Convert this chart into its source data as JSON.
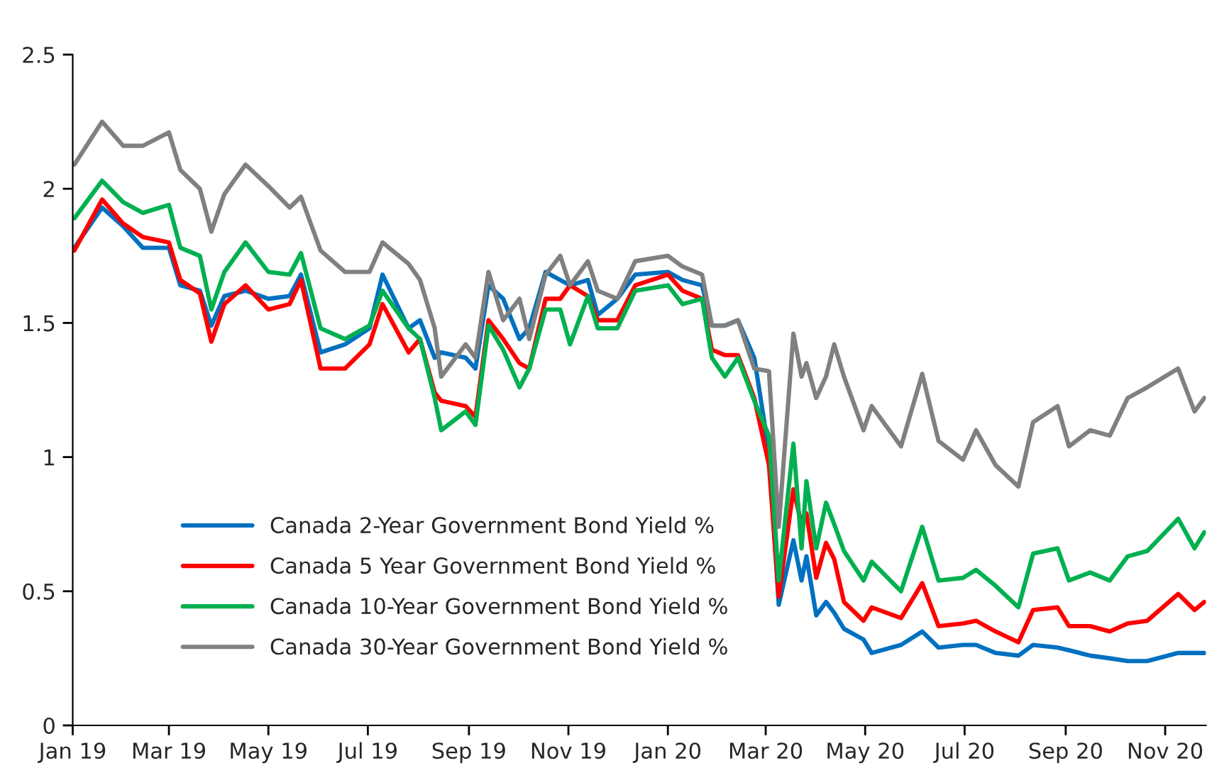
{
  "chart_data": {
    "type": "line",
    "x": [
      "2019-01-02",
      "2019-01-19",
      "2019-02-01",
      "2019-02-13",
      "2019-03-01",
      "2019-03-08",
      "2019-03-20",
      "2019-03-27",
      "2019-04-04",
      "2019-04-17",
      "2019-05-01",
      "2019-05-14",
      "2019-05-21",
      "2019-06-02",
      "2019-06-17",
      "2019-07-02",
      "2019-07-10",
      "2019-07-26",
      "2019-08-02",
      "2019-08-11",
      "2019-08-15",
      "2019-08-30",
      "2019-09-05",
      "2019-09-13",
      "2019-09-22",
      "2019-10-02",
      "2019-10-08",
      "2019-10-18",
      "2019-10-27",
      "2019-11-02",
      "2019-11-13",
      "2019-11-19",
      "2019-12-01",
      "2019-12-12",
      "2020-01-01",
      "2020-01-10",
      "2020-01-22",
      "2020-01-28",
      "2020-02-05",
      "2020-02-13",
      "2020-02-23",
      "2020-03-03",
      "2020-03-09",
      "2020-03-18",
      "2020-03-23",
      "2020-03-26",
      "2020-04-01",
      "2020-04-07",
      "2020-04-12",
      "2020-04-18",
      "2020-04-30",
      "2020-05-05",
      "2020-05-23",
      "2020-06-05",
      "2020-06-15",
      "2020-06-30",
      "2020-07-08",
      "2020-07-20",
      "2020-08-03",
      "2020-08-12",
      "2020-08-27",
      "2020-09-03",
      "2020-09-16",
      "2020-09-28",
      "2020-10-09",
      "2020-10-21",
      "2020-11-09",
      "2020-11-19",
      "2020-11-25"
    ],
    "series": [
      {
        "name": "Canada 2-Year Government Bond Yield %",
        "color": "#0070c0",
        "values": [
          1.78,
          1.93,
          1.86,
          1.78,
          1.78,
          1.64,
          1.62,
          1.49,
          1.6,
          1.62,
          1.59,
          1.6,
          1.68,
          1.39,
          1.42,
          1.48,
          1.68,
          1.48,
          1.51,
          1.37,
          1.39,
          1.37,
          1.33,
          1.64,
          1.59,
          1.44,
          1.48,
          1.69,
          1.66,
          1.64,
          1.66,
          1.53,
          1.59,
          1.68,
          1.69,
          1.66,
          1.64,
          1.49,
          1.49,
          1.51,
          1.37,
          1.02,
          0.45,
          0.69,
          0.54,
          0.63,
          0.41,
          0.46,
          0.42,
          0.36,
          0.32,
          0.27,
          0.3,
          0.35,
          0.29,
          0.3,
          0.3,
          0.27,
          0.26,
          0.3,
          0.29,
          0.28,
          0.26,
          0.25,
          0.24,
          0.24,
          0.27,
          0.27,
          0.27
        ]
      },
      {
        "name": "Canada 5 Year Government Bond Yield %",
        "color": "#ff0000",
        "values": [
          1.77,
          1.96,
          1.87,
          1.82,
          1.8,
          1.66,
          1.61,
          1.43,
          1.57,
          1.64,
          1.55,
          1.57,
          1.66,
          1.33,
          1.33,
          1.42,
          1.57,
          1.39,
          1.44,
          1.24,
          1.21,
          1.19,
          1.15,
          1.51,
          1.44,
          1.35,
          1.33,
          1.59,
          1.59,
          1.64,
          1.6,
          1.51,
          1.51,
          1.64,
          1.68,
          1.62,
          1.59,
          1.4,
          1.38,
          1.38,
          1.22,
          0.97,
          0.48,
          0.88,
          0.75,
          0.79,
          0.55,
          0.68,
          0.62,
          0.46,
          0.39,
          0.44,
          0.4,
          0.53,
          0.37,
          0.38,
          0.39,
          0.35,
          0.31,
          0.43,
          0.44,
          0.37,
          0.37,
          0.35,
          0.38,
          0.39,
          0.49,
          0.43,
          0.46
        ]
      },
      {
        "name": "Canada 10-Year Government Bond Yield %",
        "color": "#00b050",
        "values": [
          1.89,
          2.03,
          1.95,
          1.91,
          1.94,
          1.78,
          1.75,
          1.55,
          1.69,
          1.8,
          1.69,
          1.68,
          1.76,
          1.48,
          1.44,
          1.49,
          1.62,
          1.48,
          1.44,
          1.22,
          1.1,
          1.17,
          1.12,
          1.49,
          1.4,
          1.26,
          1.33,
          1.55,
          1.55,
          1.42,
          1.6,
          1.48,
          1.48,
          1.62,
          1.64,
          1.57,
          1.59,
          1.37,
          1.3,
          1.37,
          1.21,
          1.08,
          0.54,
          1.05,
          0.66,
          0.91,
          0.66,
          0.83,
          0.75,
          0.65,
          0.54,
          0.61,
          0.5,
          0.74,
          0.54,
          0.55,
          0.58,
          0.52,
          0.44,
          0.64,
          0.66,
          0.54,
          0.57,
          0.54,
          0.63,
          0.65,
          0.77,
          0.66,
          0.72
        ]
      },
      {
        "name": "Canada 30-Year Government Bond Yield %",
        "color": "#808080",
        "values": [
          2.09,
          2.25,
          2.16,
          2.16,
          2.21,
          2.07,
          2.0,
          1.84,
          1.98,
          2.09,
          2.01,
          1.93,
          1.97,
          1.77,
          1.69,
          1.69,
          1.8,
          1.72,
          1.66,
          1.48,
          1.3,
          1.42,
          1.37,
          1.69,
          1.51,
          1.59,
          1.44,
          1.68,
          1.75,
          1.64,
          1.73,
          1.62,
          1.59,
          1.73,
          1.75,
          1.71,
          1.68,
          1.49,
          1.49,
          1.51,
          1.33,
          1.32,
          0.74,
          1.46,
          1.3,
          1.35,
          1.22,
          1.3,
          1.42,
          1.3,
          1.1,
          1.19,
          1.04,
          1.31,
          1.06,
          0.99,
          1.1,
          0.97,
          0.89,
          1.13,
          1.19,
          1.04,
          1.1,
          1.08,
          1.22,
          1.26,
          1.33,
          1.17,
          1.22
        ]
      }
    ],
    "xlim": [
      "2019-01-01",
      "2020-11-26"
    ],
    "xticks": [
      {
        "value": "2019-01-01",
        "label": "Jan 19"
      },
      {
        "value": "2019-03-01",
        "label": "Mar 19"
      },
      {
        "value": "2019-05-01",
        "label": "May 19"
      },
      {
        "value": "2019-07-01",
        "label": "Jul 19"
      },
      {
        "value": "2019-09-01",
        "label": "Sep 19"
      },
      {
        "value": "2019-11-01",
        "label": "Nov 19"
      },
      {
        "value": "2020-01-01",
        "label": "Jan 20"
      },
      {
        "value": "2020-03-01",
        "label": "Mar 20"
      },
      {
        "value": "2020-05-01",
        "label": "May 20"
      },
      {
        "value": "2020-07-01",
        "label": "Jul 20"
      },
      {
        "value": "2020-09-01",
        "label": "Sep 20"
      },
      {
        "value": "2020-11-01",
        "label": "Nov 20"
      }
    ],
    "ylim": [
      0,
      2.5
    ],
    "yticks": [
      0,
      0.5,
      1,
      1.5,
      2,
      2.5
    ],
    "grid": false,
    "legend": "bottom left",
    "marker": "none",
    "line_style": "solid"
  }
}
